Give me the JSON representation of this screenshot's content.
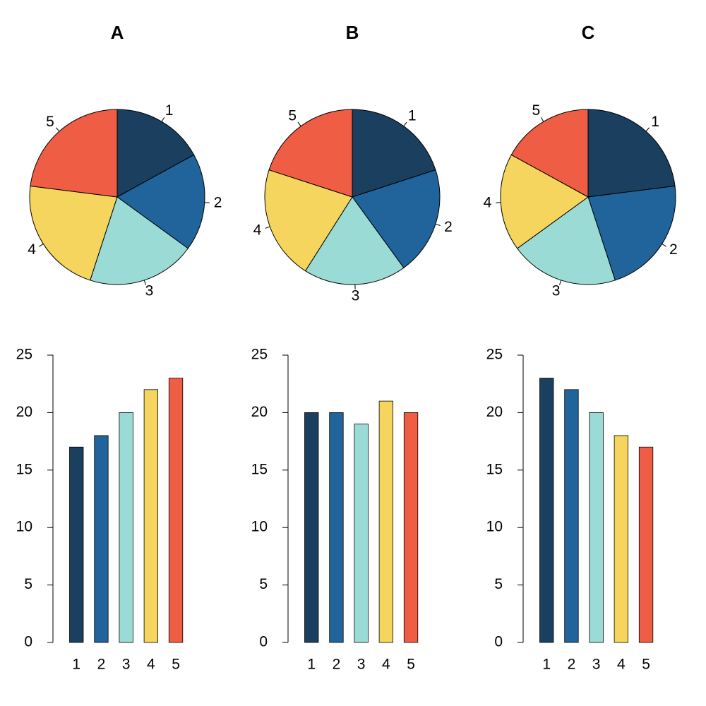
{
  "chart_data": [
    {
      "type": "pie",
      "title": "A",
      "categories": [
        "1",
        "2",
        "3",
        "4",
        "5"
      ],
      "values": [
        17,
        18,
        20,
        22,
        23
      ],
      "colors": [
        "#1a3f5f",
        "#21649c",
        "#9bdbd5",
        "#f5d55d",
        "#ef5e44"
      ]
    },
    {
      "type": "pie",
      "title": "B",
      "categories": [
        "1",
        "2",
        "3",
        "4",
        "5"
      ],
      "values": [
        20,
        20,
        19,
        21,
        20
      ],
      "colors": [
        "#1a3f5f",
        "#21649c",
        "#9bdbd5",
        "#f5d55d",
        "#ef5e44"
      ]
    },
    {
      "type": "pie",
      "title": "C",
      "categories": [
        "1",
        "2",
        "3",
        "4",
        "5"
      ],
      "values": [
        23,
        22,
        20,
        18,
        17
      ],
      "colors": [
        "#1a3f5f",
        "#21649c",
        "#9bdbd5",
        "#f5d55d",
        "#ef5e44"
      ]
    },
    {
      "type": "bar",
      "categories": [
        "1",
        "2",
        "3",
        "4",
        "5"
      ],
      "values": [
        17,
        18,
        20,
        22,
        23
      ],
      "ylim": [
        0,
        25
      ],
      "yticks": [
        0,
        5,
        10,
        15,
        20,
        25
      ],
      "colors": [
        "#1a3f5f",
        "#21649c",
        "#9bdbd5",
        "#f5d55d",
        "#ef5e44"
      ]
    },
    {
      "type": "bar",
      "categories": [
        "1",
        "2",
        "3",
        "4",
        "5"
      ],
      "values": [
        20,
        20,
        19,
        21,
        20
      ],
      "ylim": [
        0,
        25
      ],
      "yticks": [
        0,
        5,
        10,
        15,
        20,
        25
      ],
      "colors": [
        "#1a3f5f",
        "#21649c",
        "#9bdbd5",
        "#f5d55d",
        "#ef5e44"
      ]
    },
    {
      "type": "bar",
      "categories": [
        "1",
        "2",
        "3",
        "4",
        "5"
      ],
      "values": [
        23,
        22,
        20,
        18,
        17
      ],
      "ylim": [
        0,
        25
      ],
      "yticks": [
        0,
        5,
        10,
        15,
        20,
        25
      ],
      "colors": [
        "#1a3f5f",
        "#21649c",
        "#9bdbd5",
        "#f5d55d",
        "#ef5e44"
      ]
    }
  ]
}
